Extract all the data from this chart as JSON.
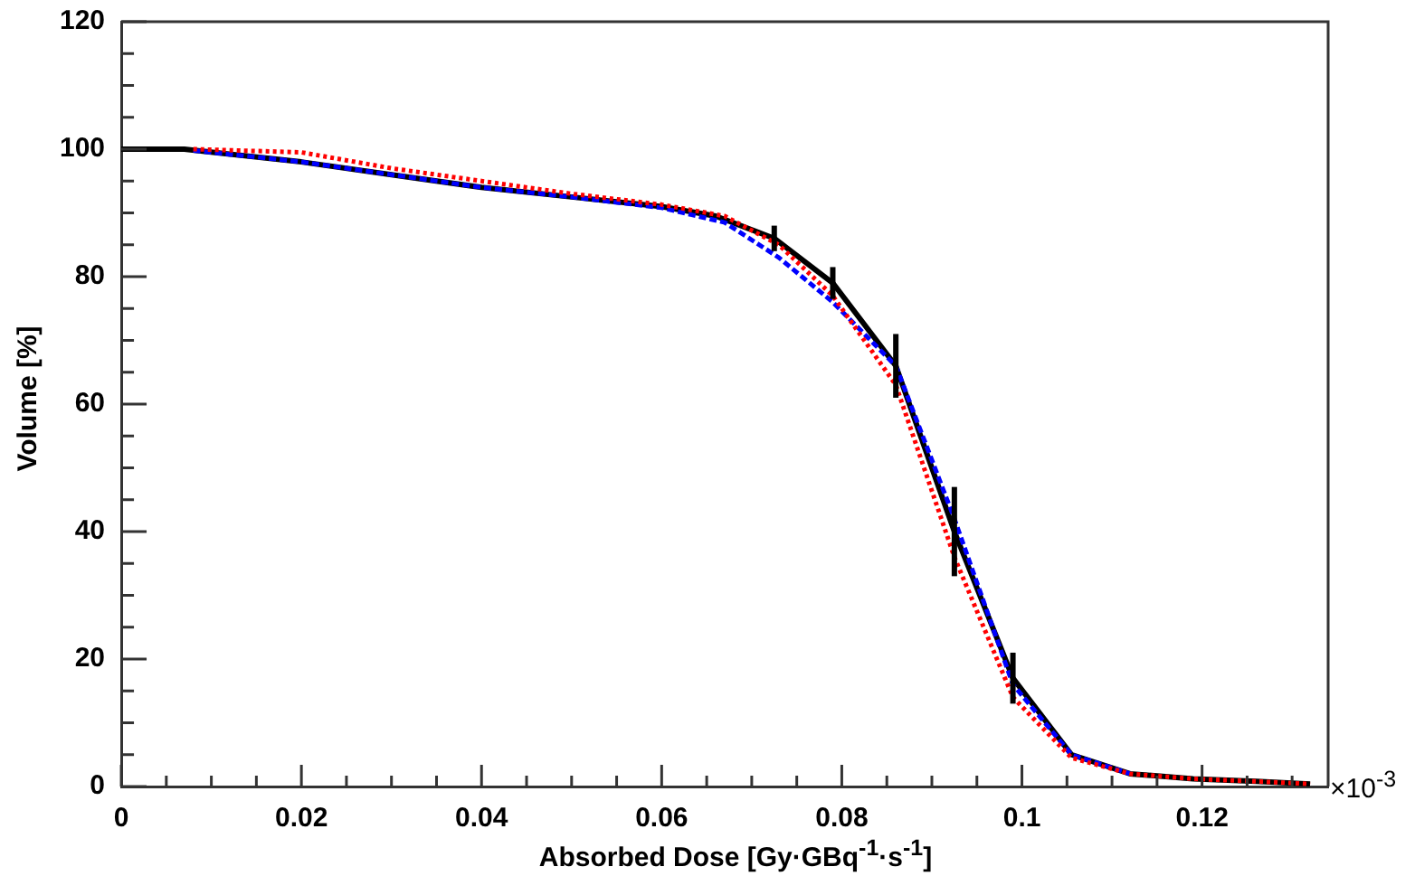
{
  "chart_data": {
    "type": "line",
    "xlabel": "Absorbed Dose [Gy·GBq$^{-1}$·s$^{-1}$]",
    "ylabel": "Volume [%]",
    "annotations": [
      "×10$^{-3}$"
    ],
    "xlim": [
      0,
      0.134
    ],
    "ylim": [
      0,
      120
    ],
    "xticks": [
      0,
      {
        "value": 0.005,
        "label": null
      },
      {
        "value": 0.01,
        "label": null
      },
      {
        "value": 0.015,
        "label": null
      },
      0.02,
      {
        "value": 0.025,
        "label": null
      },
      {
        "value": 0.03,
        "label": null
      },
      {
        "value": 0.035,
        "label": null
      },
      0.04,
      {
        "value": 0.045,
        "label": null
      },
      {
        "value": 0.05,
        "label": null
      },
      {
        "value": 0.055,
        "label": null
      },
      0.06,
      {
        "value": 0.065,
        "label": null
      },
      {
        "value": 0.07,
        "label": null
      },
      {
        "value": 0.075,
        "label": null
      },
      0.08,
      {
        "value": 0.085,
        "label": null
      },
      {
        "value": 0.09,
        "label": null
      },
      {
        "value": 0.095,
        "label": null
      },
      {
        "value": 0.1,
        "label": "0.1"
      },
      {
        "value": 0.105,
        "label": null
      },
      {
        "value": 0.11,
        "label": null
      },
      {
        "value": 0.115,
        "label": null
      },
      0.12,
      {
        "value": 0.125,
        "label": null
      },
      {
        "value": 0.13,
        "label": null
      }
    ],
    "yticks": [
      0,
      {
        "value": 5,
        "label": null
      },
      {
        "value": 10,
        "label": null
      },
      {
        "value": 15,
        "label": null
      },
      20,
      {
        "value": 25,
        "label": null
      },
      {
        "value": 30,
        "label": null
      },
      {
        "value": 35,
        "label": null
      },
      40,
      {
        "value": 45,
        "label": null
      },
      {
        "value": 50,
        "label": null
      },
      {
        "value": 55,
        "label": null
      },
      60,
      {
        "value": 65,
        "label": null
      },
      {
        "value": 70,
        "label": null
      },
      {
        "value": 75,
        "label": null
      },
      80,
      {
        "value": 85,
        "label": null
      },
      {
        "value": 90,
        "label": null
      },
      {
        "value": 95,
        "label": null
      },
      100,
      {
        "value": 105,
        "label": null
      },
      {
        "value": 110,
        "label": null
      },
      {
        "value": 115,
        "label": null
      },
      120
    ],
    "grid": false,
    "legend": false,
    "marker": "none",
    "series": [
      {
        "color": "#ff0000",
        "line_style": "dotted",
        "x": [
          0.008,
          0.02,
          0.03,
          0.04,
          0.05,
          0.06,
          0.067,
          0.073,
          0.079,
          0.086,
          0.0925,
          0.099,
          0.1055,
          0.112,
          0.119,
          0.126,
          0.132
        ],
        "values": [
          100,
          99.5,
          97,
          95,
          93,
          91.3,
          89.5,
          85,
          77,
          63,
          36,
          14,
          4.5,
          2,
          1.2,
          0.8,
          0.4
        ]
      },
      {
        "color": "#0000ff",
        "line_style": "dashed",
        "x": [
          0.008,
          0.02,
          0.03,
          0.04,
          0.05,
          0.06,
          0.067,
          0.073,
          0.079,
          0.086,
          0.0925,
          0.099,
          0.1055,
          0.112
        ],
        "values": [
          99.8,
          98,
          96,
          94,
          92.5,
          90.8,
          88.5,
          83,
          76,
          66,
          42,
          16,
          5,
          2
        ]
      },
      {
        "color": "#000000",
        "line_style": "solid",
        "x": [
          0,
          0.007,
          0.02,
          0.03,
          0.04,
          0.05,
          0.06,
          0.066,
          0.0725,
          0.079,
          0.086,
          0.0925,
          0.099,
          0.1055,
          0.112,
          0.119,
          0.126,
          0.132
        ],
        "values": [
          100,
          100,
          98,
          96,
          94,
          92.5,
          91,
          89.5,
          86,
          79,
          66,
          40,
          17,
          5,
          2,
          1.2,
          0.8,
          0.4
        ],
        "errors": [
          null,
          null,
          null,
          null,
          null,
          null,
          null,
          null,
          2,
          2.5,
          5,
          7,
          4,
          null,
          null,
          null,
          null,
          null
        ]
      }
    ]
  }
}
